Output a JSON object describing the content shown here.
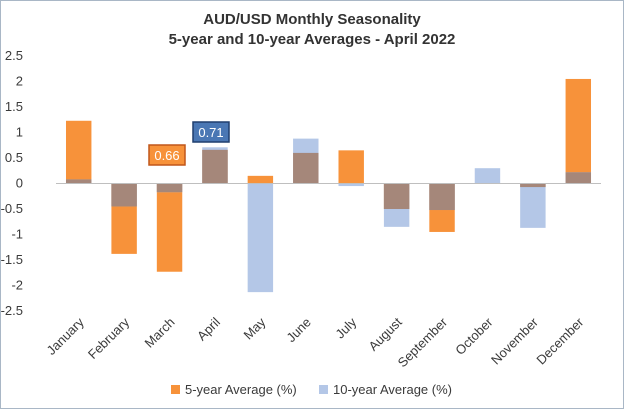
{
  "chart_data": {
    "type": "bar",
    "title": "AUD/USD Monthly Seasonality",
    "subtitle": "5-year and 10-year Averages - April 2022",
    "categories": [
      "January",
      "February",
      "March",
      "April",
      "May",
      "June",
      "July",
      "August",
      "September",
      "October",
      "November",
      "December"
    ],
    "series": [
      {
        "name": "5-year Average (%)",
        "color": "#f7923a",
        "values": [
          1.23,
          -1.38,
          -1.73,
          0.66,
          0.15,
          0.6,
          0.65,
          -0.5,
          -0.95,
          0.0,
          -0.07,
          2.05
        ]
      },
      {
        "name": "10-year Average (%)",
        "color": "#b4c7e7",
        "values": [
          0.08,
          -0.45,
          -0.17,
          0.71,
          -2.13,
          0.88,
          -0.05,
          -0.85,
          -0.52,
          0.3,
          -0.87,
          0.22
        ]
      }
    ],
    "overlap_color": "#a5877a",
    "ylim": [
      -2.5,
      2.5
    ],
    "yticks": [
      2.5,
      2,
      1.5,
      1,
      0.5,
      0,
      -0.5,
      -1,
      -1.5,
      -2,
      -2.5
    ],
    "ytick_labels": [
      "2.5",
      "2",
      "1.5",
      "1",
      "0.5",
      "0",
      "-0.5",
      "-1",
      "-1.5",
      "-2",
      "-2.5"
    ],
    "grid": false,
    "legend_position": "bottom",
    "annotations": [
      {
        "category": "March",
        "text": "0.66",
        "series": "5-year Average (%)",
        "fill": "#f7923a",
        "border": "#c0561a"
      },
      {
        "category": "April",
        "text": "0.71",
        "series": "10-year Average (%)",
        "fill": "#4a77b4",
        "border": "#1f3f6e"
      }
    ]
  }
}
